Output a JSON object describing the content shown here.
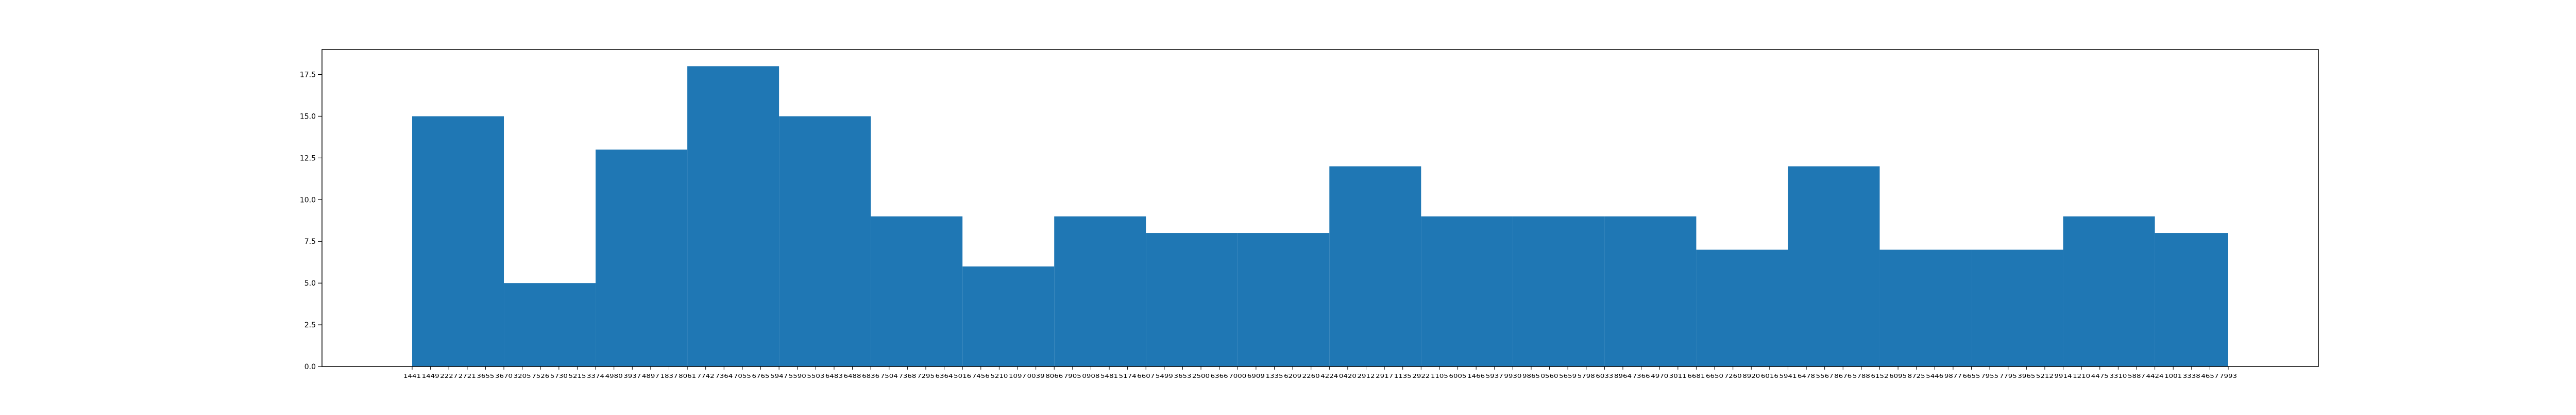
{
  "chart_data": {
    "type": "bar",
    "title": "",
    "xlabel": "",
    "ylabel": "",
    "ylim": [
      0,
      19
    ],
    "yticks": [
      0.0,
      2.5,
      5.0,
      7.5,
      10.0,
      12.5,
      15.0,
      17.5
    ],
    "ytick_labels": [
      "0.0",
      "2.5",
      "5.0",
      "7.5",
      "10.0",
      "12.5",
      "15.0",
      "17.5"
    ],
    "grid": false,
    "bar_color": "#1f77b4",
    "bins": [
      {
        "start_index": 0,
        "end_index": 5,
        "value": 15
      },
      {
        "start_index": 5,
        "end_index": 10,
        "value": 5
      },
      {
        "start_index": 10,
        "end_index": 15,
        "value": 13
      },
      {
        "start_index": 15,
        "end_index": 20,
        "value": 18
      },
      {
        "start_index": 20,
        "end_index": 25,
        "value": 15
      },
      {
        "start_index": 25,
        "end_index": 30,
        "value": 9
      },
      {
        "start_index": 30,
        "end_index": 35,
        "value": 6
      },
      {
        "start_index": 35,
        "end_index": 40,
        "value": 9
      },
      {
        "start_index": 40,
        "end_index": 45,
        "value": 8
      },
      {
        "start_index": 45,
        "end_index": 50,
        "value": 8
      },
      {
        "start_index": 50,
        "end_index": 55,
        "value": 12
      },
      {
        "start_index": 55,
        "end_index": 60,
        "value": 9
      },
      {
        "start_index": 60,
        "end_index": 65,
        "value": 9
      },
      {
        "start_index": 65,
        "end_index": 70,
        "value": 9
      },
      {
        "start_index": 70,
        "end_index": 75,
        "value": 7
      },
      {
        "start_index": 75,
        "end_index": 80,
        "value": 12
      },
      {
        "start_index": 80,
        "end_index": 85,
        "value": 7
      },
      {
        "start_index": 85,
        "end_index": 90,
        "value": 7
      },
      {
        "start_index": 90,
        "end_index": 95,
        "value": 9
      },
      {
        "start_index": 95,
        "end_index": 100,
        "value": 8
      }
    ],
    "x_tick_labels": [
      "1441",
      "1449",
      "2227",
      "2721",
      "3655",
      "3670",
      "3205",
      "7526",
      "5730",
      "5215",
      "3374",
      "4980",
      "3937",
      "4897",
      "1837",
      "8061",
      "7742",
      "7364",
      "7055",
      "6765",
      "5947",
      "5590",
      "5503",
      "6483",
      "6488",
      "6836",
      "7504",
      "7368",
      "7295",
      "6364",
      "5016",
      "7456",
      "5210",
      "1097",
      "0039",
      "8066",
      "7905",
      "0908",
      "5481",
      "5174",
      "6607",
      "5499",
      "3653",
      "2500",
      "6366",
      "7000",
      "6909",
      "1335",
      "6209",
      "2260",
      "4224",
      "0420",
      "2912",
      "2917",
      "1135",
      "2922",
      "1105",
      "6005",
      "1466",
      "5937",
      "9930",
      "9865",
      "0560",
      "5659",
      "5798",
      "6033",
      "8964",
      "7366",
      "4970",
      "3011",
      "6681",
      "6650",
      "7260",
      "8920",
      "6016",
      "5941",
      "6478",
      "5567",
      "8676",
      "5788",
      "6152",
      "6095",
      "8725",
      "5446",
      "9877",
      "6655",
      "7955",
      "7795",
      "3965",
      "5212",
      "9914",
      "1210",
      "4475",
      "3310",
      "5887",
      "4424",
      "1001",
      "3338",
      "4657",
      "7993"
    ]
  }
}
